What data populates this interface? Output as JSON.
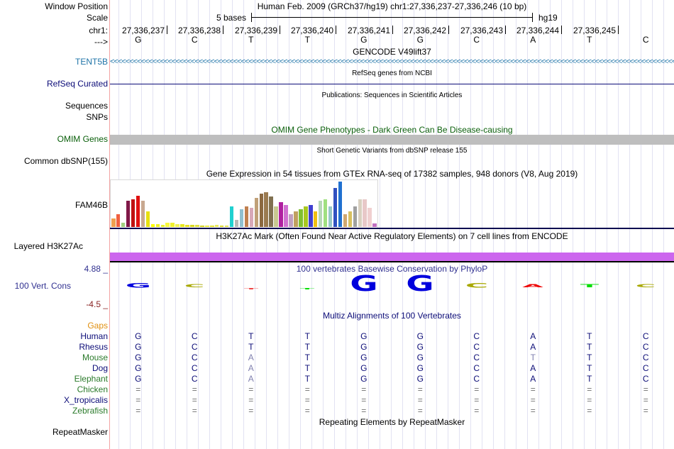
{
  "header": {
    "window_position_label": "Window Position",
    "window_position_value": "Human Feb. 2009 (GRCh37/hg19)   chr1:27,336,237-27,336,246 (10 bp)",
    "scale_label": "Scale",
    "scale_text": "5 bases",
    "scale_assembly": "hg19",
    "chrom_label": "chr1:",
    "strand_label": "--->",
    "positions": [
      "27,336,237",
      "27,336,238",
      "27,336,239",
      "27,336,240",
      "27,336,241",
      "27,336,242",
      "27,336,243",
      "27,336,244",
      "27,336,245"
    ],
    "bases": [
      "G",
      "C",
      "T",
      "T",
      "G",
      "G",
      "C",
      "A",
      "T",
      "C"
    ]
  },
  "tracks": {
    "gencode": {
      "title": "GENCODE V49lift37",
      "label": "TENT5B"
    },
    "refseq": {
      "title": "RefSeq genes from NCBI",
      "label": "RefSeq Curated"
    },
    "publications": {
      "title": "Publications: Sequences in Scientific Articles",
      "label_1": "Sequences",
      "label_2": "SNPs"
    },
    "omim": {
      "title": "OMIM Gene Phenotypes - Dark Green Can Be Disease-causing",
      "label": "OMIM Genes"
    },
    "dbsnp": {
      "title": "Short Genetic Variants from dbSNP release 155",
      "label": "Common dbSNP(155)"
    },
    "gtex": {
      "title": "Gene Expression in 54 tissues from GTEx RNA-seq of 17382 samples, 948 donors (V8, Aug 2019)",
      "label": "FAM46B"
    },
    "h3k27ac": {
      "title": "H3K27Ac Mark (Often Found Near Active Regulatory Elements) on 7 cell lines from ENCODE",
      "label": "Layered H3K27Ac"
    },
    "phylop": {
      "title": "100 vertebrates Basewise Conservation by PhyloP",
      "label": "100 Vert. Cons",
      "max": "4.88 _",
      "min": "-4.5 _"
    },
    "multiz": {
      "title": "Multiz Alignments of 100 Vertebrates",
      "gaps_label": "Gaps",
      "species": [
        {
          "name": "Human",
          "bases": [
            "G",
            "C",
            "T",
            "T",
            "G",
            "G",
            "C",
            "A",
            "T",
            "C"
          ]
        },
        {
          "name": "Rhesus",
          "bases": [
            "G",
            "C",
            "T",
            "T",
            "G",
            "G",
            "C",
            "A",
            "T",
            "C"
          ]
        },
        {
          "name": "Mouse",
          "bases": [
            "G",
            "C",
            "A",
            "T",
            "G",
            "G",
            "C",
            "T",
            "T",
            "C"
          ]
        },
        {
          "name": "Dog",
          "bases": [
            "G",
            "C",
            "A",
            "T",
            "G",
            "G",
            "C",
            "A",
            "T",
            "C"
          ]
        },
        {
          "name": "Elephant",
          "bases": [
            "G",
            "C",
            "A",
            "T",
            "G",
            "G",
            "C",
            "A",
            "T",
            "C"
          ]
        },
        {
          "name": "Chicken",
          "bases": [
            "=",
            "=",
            "=",
            "=",
            "=",
            "=",
            "=",
            "=",
            "=",
            "="
          ]
        },
        {
          "name": "X_tropicalis",
          "bases": [
            "=",
            "=",
            "=",
            "=",
            "=",
            "=",
            "=",
            "=",
            "=",
            "="
          ]
        },
        {
          "name": "Zebrafish",
          "bases": [
            "=",
            "=",
            "=",
            "=",
            "=",
            "=",
            "=",
            "=",
            "=",
            "="
          ]
        }
      ]
    },
    "repeatmasker": {
      "title": "Repeating Elements by RepeatMasker",
      "label": "RepeatMasker"
    }
  },
  "gtex_values": [
    12,
    18,
    6,
    38,
    40,
    45,
    38,
    22,
    4,
    4,
    3,
    6,
    6,
    4,
    4,
    3,
    3,
    3,
    2,
    2,
    2,
    3,
    2,
    2,
    30,
    10,
    25,
    30,
    28,
    42,
    48,
    50,
    44,
    30,
    36,
    32,
    18,
    22,
    26,
    30,
    32,
    22,
    38,
    40,
    30,
    56,
    65,
    18,
    22,
    30,
    40,
    40,
    28,
    5
  ],
  "gtex_colors": [
    "#f0a050",
    "#f06040",
    "#a0d080",
    "#801848",
    "#c01010",
    "#e01010",
    "#c8a890",
    "#e8e010",
    "#ffff00",
    "#f0f020",
    "#e8f030",
    "#f8f840",
    "#f0f030",
    "#f0f050",
    "#e8e820",
    "#e8e020",
    "#d8d820",
    "#e0e040",
    "#d0d020",
    "#e8e840",
    "#e0e030",
    "#e8e860",
    "#d8d830",
    "#e0e050",
    "#20d0d0",
    "#b8b8b8",
    "#90c0d0",
    "#c08050",
    "#d8a8b8",
    "#c0a078",
    "#8b6840",
    "#9a7a50",
    "#807050",
    "#c8c890",
    "#b020a0",
    "#d070d0",
    "#c0a0c0",
    "#c0a060",
    "#80c030",
    "#a8c820",
    "#4040d0",
    "#f0c010",
    "#b8d8b8",
    "#a0e080",
    "#98c8c8",
    "#3050c0",
    "#2070d0",
    "#d0a870",
    "#d8c060",
    "#a0a0a0",
    "#d8d0c0",
    "#e8c8c8",
    "#f0d0d0",
    "#c070c0"
  ],
  "phylop_logo": [
    {
      "base": "G",
      "color": "#0000dd",
      "size": "medium"
    },
    {
      "base": "C",
      "color": "#a8a800",
      "size": "small"
    },
    {
      "base": "T",
      "color": "#ee4444",
      "size": "tiny"
    },
    {
      "base": "T",
      "color": "#00dd00",
      "size": "tiny"
    },
    {
      "base": "G",
      "color": "#0000dd",
      "size": "large"
    },
    {
      "base": "G",
      "color": "#0000dd",
      "size": "large"
    },
    {
      "base": "C",
      "color": "#a8a800",
      "size": "medium"
    },
    {
      "base": "A",
      "color": "#ee0000",
      "size": "small"
    },
    {
      "base": "T",
      "color": "#00dd00",
      "size": "small"
    },
    {
      "base": "C",
      "color": "#a8a800",
      "size": "small"
    }
  ]
}
